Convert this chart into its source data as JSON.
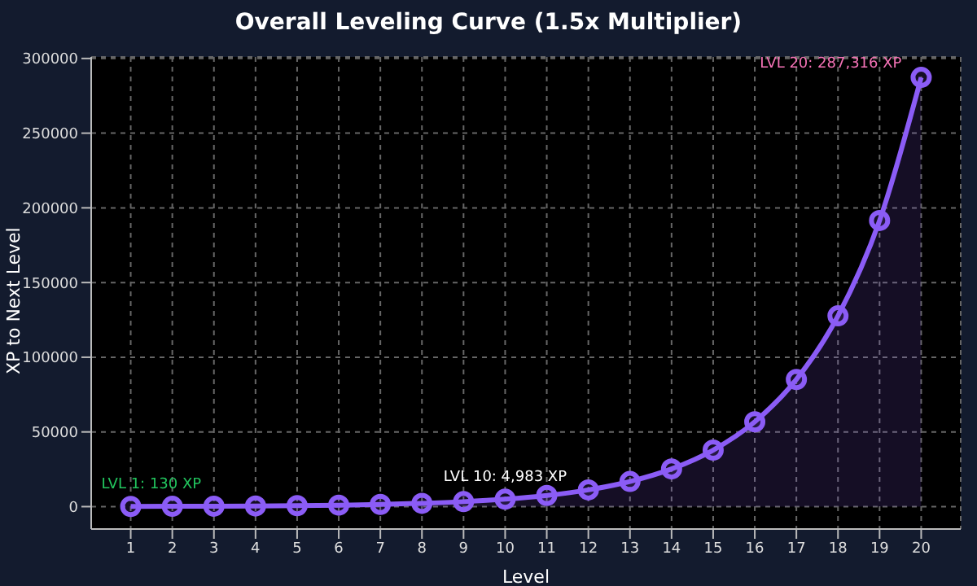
{
  "chart_data": {
    "type": "area",
    "title": "Overall Leveling Curve (1.5x Multiplier)",
    "xlabel": "Level",
    "ylabel": "XP to Next Level",
    "x": [
      1,
      2,
      3,
      4,
      5,
      6,
      7,
      8,
      9,
      10,
      11,
      12,
      13,
      14,
      15,
      16,
      17,
      18,
      19,
      20
    ],
    "series": [
      {
        "color": "#8b5cf6",
        "values": [
          130,
          195,
          292,
          438,
          657,
          985,
          1477,
          2215,
          3322,
          4983,
          7474,
          11211,
          16816,
          25224,
          37836,
          56754,
          85131,
          127696,
          191544,
          287316
        ]
      }
    ],
    "xlim": [
      0.05,
      20.95
    ],
    "xticks": [
      1,
      2,
      3,
      4,
      5,
      6,
      7,
      8,
      9,
      10,
      11,
      12,
      13,
      14,
      15,
      16,
      17,
      18,
      19,
      20
    ],
    "ylim": [
      -15000,
      301000
    ],
    "yticks": [
      0,
      50000,
      100000,
      150000,
      200000,
      250000,
      300000
    ],
    "grid": true,
    "marker": "circle",
    "line_style": "solid",
    "legend": false,
    "annotations": [
      {
        "text": "LVL 1: 130 XP",
        "x": 1,
        "y": 130
      },
      {
        "text": "LVL 10: 4,983 XP",
        "x": 10,
        "y": 4983
      },
      {
        "text": "LVL 20: 287,316 XP",
        "x": 20,
        "y": 287316
      }
    ]
  }
}
